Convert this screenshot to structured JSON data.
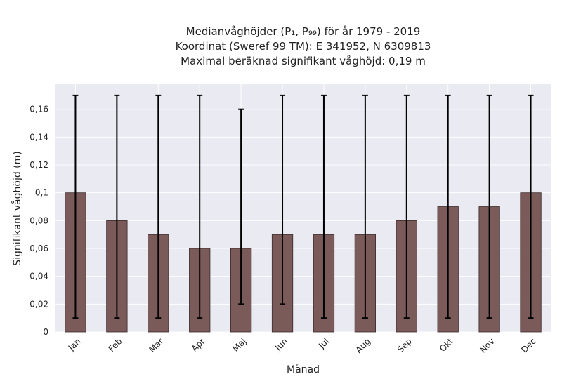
{
  "chart_data": {
    "type": "bar",
    "title_lines": [
      "Medianvåghöjder (P₁, P₉₉) för år 1979 - 2019",
      "Koordinat (Sweref 99 TM): E 341952, N 6309813",
      "Maximal beräknad signifikant våghöjd: 0,19 m"
    ],
    "xlabel": "Månad",
    "ylabel": "Signifikant våghöjd (m)",
    "categories": [
      "Jan",
      "Feb",
      "Mar",
      "Apr",
      "Maj",
      "Jun",
      "Jul",
      "Aug",
      "Sep",
      "Okt",
      "Nov",
      "Dec"
    ],
    "values": [
      0.1,
      0.08,
      0.07,
      0.06,
      0.06,
      0.07,
      0.07,
      0.07,
      0.08,
      0.09,
      0.09,
      0.1
    ],
    "err_low": [
      0.01,
      0.01,
      0.01,
      0.01,
      0.02,
      0.02,
      0.01,
      0.01,
      0.01,
      0.01,
      0.01,
      0.01
    ],
    "err_high": [
      0.17,
      0.17,
      0.17,
      0.17,
      0.16,
      0.17,
      0.17,
      0.17,
      0.17,
      0.17,
      0.17,
      0.17
    ],
    "ylim": [
      0,
      0.178
    ],
    "yticks": [
      0,
      0.02,
      0.04,
      0.06,
      0.08,
      0.1,
      0.12,
      0.14,
      0.16
    ],
    "ytick_labels": [
      "0",
      "0,02",
      "0,04",
      "0,06",
      "0,08",
      "0,1",
      "0,12",
      "0,14",
      "0,16"
    ],
    "grid": true,
    "colors": {
      "bar": "#7b5a5a",
      "bar_edge": "#3a2a2a",
      "error": "#000000",
      "background": "#eaeaf2",
      "grid": "#ffffff"
    }
  }
}
